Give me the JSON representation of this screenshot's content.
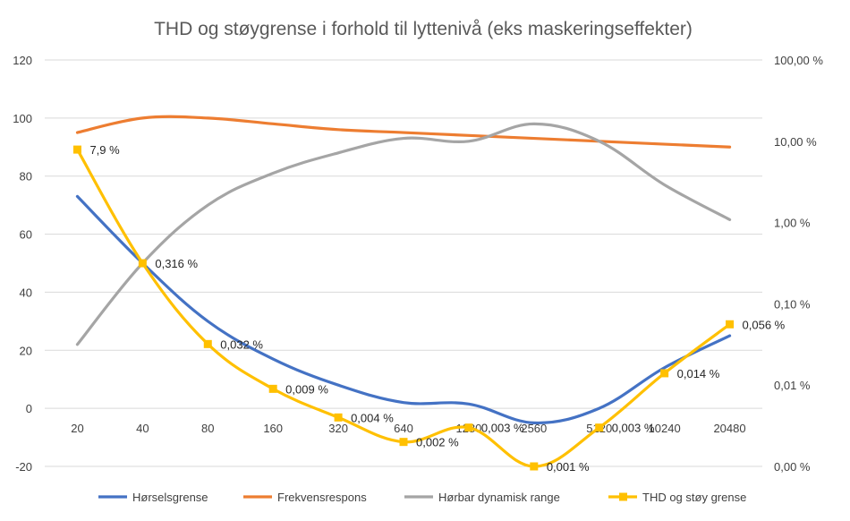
{
  "chart_data": {
    "type": "line",
    "title": "THD og støygrense i forhold til lyttenivå (eks maskeringseffekter)",
    "categories": [
      "20",
      "40",
      "80",
      "160",
      "320",
      "640",
      "1280",
      "2560",
      "5120",
      "10240",
      "20480"
    ],
    "ylim_left": [
      -20,
      120
    ],
    "left_ticks": [
      "-20",
      "0",
      "20",
      "40",
      "60",
      "80",
      "100",
      "120"
    ],
    "right_ticks": [
      "0,00 %",
      "0,01 %",
      "0,10 %",
      "1,00 %",
      "10,00 %",
      "100,00 %"
    ],
    "grid": true,
    "legend_position": "bottom",
    "series": [
      {
        "name": "Hørselsgrense",
        "axis": "left",
        "color": "#4472C4",
        "values": [
          73,
          50,
          30,
          17,
          8,
          2,
          1.5,
          -5,
          0,
          14,
          25
        ]
      },
      {
        "name": "Frekvensrespons",
        "axis": "left",
        "color": "#ED7D31",
        "values": [
          95,
          100,
          100,
          98,
          96,
          95,
          94,
          93,
          92,
          91,
          90
        ]
      },
      {
        "name": "Hørbar dynamisk range",
        "axis": "left",
        "color": "#A5A5A5",
        "values": [
          22,
          50,
          70,
          81,
          88,
          93,
          92,
          98,
          92,
          77,
          65
        ]
      },
      {
        "name": "THD og støy grense",
        "axis": "right",
        "color": "#FFC000",
        "values_percent": [
          7.9,
          0.316,
          0.032,
          0.009,
          0.004,
          0.002,
          0.003,
          0.001,
          0.003,
          0.014,
          0.056
        ],
        "labels": [
          "7,9 %",
          "0,316 %",
          "0,032 %",
          "0,009 %",
          "0,004 %",
          "0,002 %",
          "0,003 %",
          "0,001 %",
          "0,003 %",
          "0,014 %",
          "0,056 %"
        ]
      }
    ]
  }
}
